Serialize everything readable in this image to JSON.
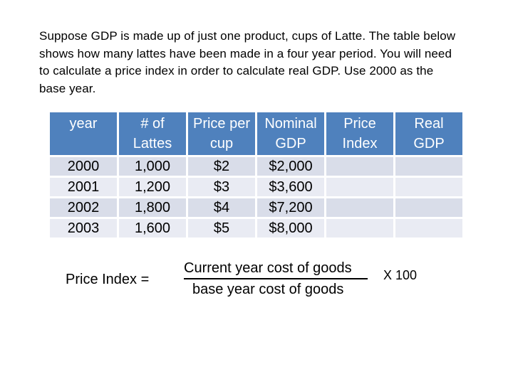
{
  "intro": {
    "lines": [
      "Suppose GDP is made up of just one product, cups of Latte.  The table below",
      "shows how many lattes have been made in a four year period.  You will need",
      "to calculate a price index in order to calculate real GDP.  Use 2000 as the",
      "base year."
    ]
  },
  "table": {
    "headers": [
      [
        "year",
        ""
      ],
      [
        "# of",
        "Lattes"
      ],
      [
        "Price per",
        "cup"
      ],
      [
        "Nominal",
        "GDP"
      ],
      [
        "Price",
        "Index"
      ],
      [
        "Real",
        "GDP"
      ]
    ],
    "rows": [
      [
        "2000",
        "1,000",
        "$2",
        "$2,000",
        "",
        ""
      ],
      [
        "2001",
        "1,200",
        "$3",
        "$3,600",
        "",
        ""
      ],
      [
        "2002",
        "1,800",
        "$4",
        "$7,200",
        "",
        ""
      ],
      [
        "2003",
        "1,600",
        "$5",
        "$8,000",
        "",
        ""
      ]
    ],
    "colors": {
      "header_bg": "#4f81bd",
      "row_bg": "#d9dde9",
      "row_alt_bg": "#e9ebf3"
    }
  },
  "formula": {
    "lhs": "Price Index  =",
    "numerator": "Current year cost of goods",
    "denominator": "base year cost of goods",
    "multiplier": "X  100"
  }
}
